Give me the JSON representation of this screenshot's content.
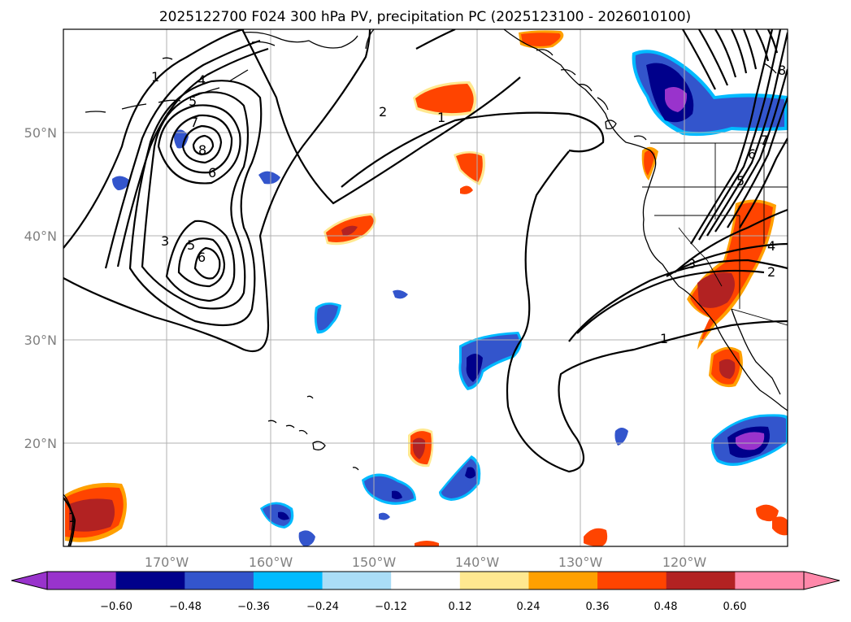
{
  "title": "2025122700 F024 300 hPa PV, precipitation PC (2025123100 - 2026010100)",
  "longitude_labels": [
    "170°W",
    "160°W",
    "150°W",
    "140°W",
    "130°W",
    "120°W"
  ],
  "latitude_labels": [
    "50°N",
    "40°N",
    "30°N",
    "20°N"
  ],
  "colorbar": {
    "ticks": [
      "−0.60",
      "−0.48",
      "−0.36",
      "−0.24",
      "−0.12",
      "0.12",
      "0.24",
      "0.36",
      "0.48",
      "0.60"
    ],
    "colors": [
      "#9933cc",
      "#00008b",
      "#3355cc",
      "#00bbff",
      "#aaddf7",
      "#ffffff",
      "#ffe890",
      "#ffa000",
      "#ff4400",
      "#b22222",
      "#ff88aa"
    ]
  },
  "contour_labels": {
    "c1a": "1",
    "c4a": "4",
    "c5a": "5",
    "c7a": "7",
    "c8a": "8",
    "c6a": "6",
    "c3a": "3",
    "c5b": "5",
    "c6b": "6",
    "c2a": "2",
    "c1b": "1",
    "c3b": "3",
    "c4b": "4",
    "c2b": "2",
    "c1c": "1",
    "c6c": "6",
    "c5c": "5",
    "c7b": "7",
    "c8b": "8",
    "c1d": "1"
  }
}
